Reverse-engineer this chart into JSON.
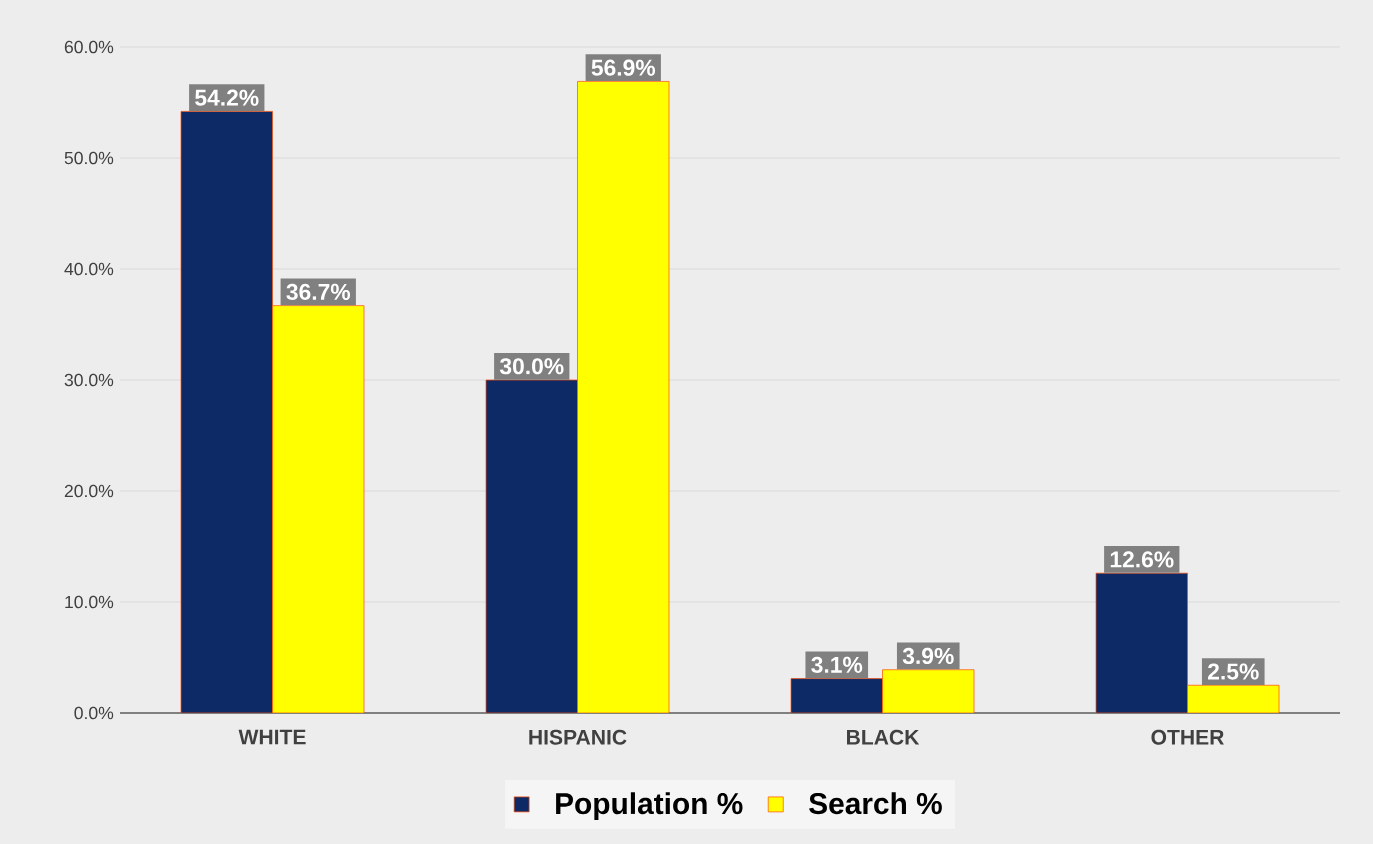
{
  "chart_data": {
    "type": "bar",
    "categories": [
      "WHITE",
      "HISPANIC",
      "BLACK",
      "OTHER"
    ],
    "series": [
      {
        "name": "Population %",
        "color": "#0d2a66",
        "values": [
          54.2,
          30.0,
          3.1,
          12.6
        ],
        "value_labels": [
          "54.2%",
          "30.0%",
          "3.1%",
          "12.6%"
        ]
      },
      {
        "name": "Search %",
        "color": "#ffff00",
        "values": [
          36.7,
          56.9,
          3.9,
          2.5
        ],
        "value_labels": [
          "36.7%",
          "56.9%",
          "3.9%",
          "2.5%"
        ]
      }
    ],
    "ylim": [
      0,
      60
    ],
    "yticks": [
      {
        "value": 0,
        "label": "0.0%"
      },
      {
        "value": 10,
        "label": "10.0%"
      },
      {
        "value": 20,
        "label": "20.0%"
      },
      {
        "value": 30,
        "label": "30.0%"
      },
      {
        "value": 40,
        "label": "40.0%"
      },
      {
        "value": 50,
        "label": "50.0%"
      },
      {
        "value": 60,
        "label": "60.0%"
      }
    ],
    "grid": "y",
    "legend": "bottom"
  }
}
